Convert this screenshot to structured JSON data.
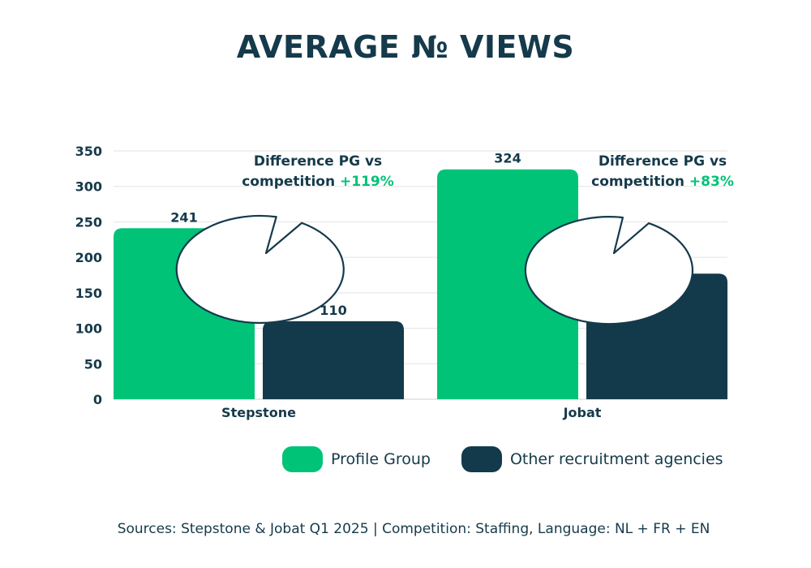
{
  "chart_data": {
    "type": "bar",
    "title": "AVERAGE № VIEWS",
    "categories": [
      "Stepstone",
      "Jobat"
    ],
    "series": [
      {
        "name": "Profile Group",
        "values": [
          241,
          324
        ],
        "color": "#00c378"
      },
      {
        "name": "Other recruitment agencies",
        "values": [
          110,
          177
        ],
        "color": "#133a4b"
      }
    ],
    "ylim": [
      0,
      350
    ],
    "yticks": [
      0,
      50,
      100,
      150,
      200,
      250,
      300,
      350
    ],
    "xlabel": "",
    "ylabel": "",
    "grid": true,
    "legend_position": "bottom",
    "annotations": [
      {
        "category": "Stepstone",
        "line1": "Difference PG vs",
        "line2": "competition",
        "delta": "+119%"
      },
      {
        "category": "Jobat",
        "line1": "Difference PG vs",
        "line2": "competition",
        "delta": "+83%"
      }
    ]
  },
  "colors": {
    "text": "#153a4b",
    "accent": "#00c378",
    "grid": "#e3e3e3"
  },
  "source_text": "Sources: Stepstone & Jobat Q1 2025 | Competition: Staffing, Language: NL + FR + EN"
}
